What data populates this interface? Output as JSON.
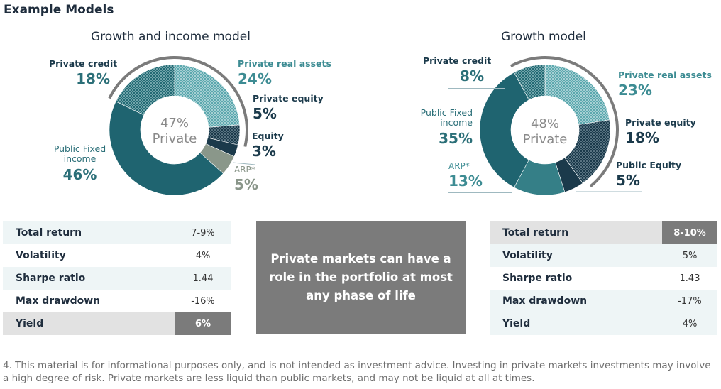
{
  "page_title": "Example Models",
  "chart_data": [
    {
      "type": "pie",
      "title": "Growth and income model",
      "center": {
        "percent": "47%",
        "label": "Private"
      },
      "slices": [
        {
          "name": "Private real assets",
          "value": 24,
          "label": "24%",
          "pattern": "dots-light",
          "color": "#4a9ea5"
        },
        {
          "name": "Private equity",
          "value": 5,
          "label": "5%",
          "pattern": "dots-dark",
          "color": "#1b3a4b"
        },
        {
          "name": "Equity",
          "value": 3,
          "label": "3%",
          "pattern": "solid",
          "color": "#1b3a4b"
        },
        {
          "name": "ARP*",
          "value": 5,
          "label": "5%",
          "pattern": "solid",
          "color": "#8a978a"
        },
        {
          "name": "Public Fixed income",
          "value": 46,
          "label": "46%",
          "pattern": "solid",
          "color": "#1f6470"
        },
        {
          "name": "Private credit",
          "value": 18,
          "label": "18%",
          "pattern": "dots-mid",
          "color": "#2f7d86"
        }
      ],
      "private_arc_percent": 47
    },
    {
      "type": "pie",
      "title": "Growth model",
      "center": {
        "percent": "48%",
        "label": "Private"
      },
      "slices": [
        {
          "name": "Private real assets",
          "value": 23,
          "label": "23%",
          "pattern": "dots-light",
          "color": "#4a9ea5"
        },
        {
          "name": "Private equity",
          "value": 18,
          "label": "18%",
          "pattern": "dots-dark",
          "color": "#1b3a4b"
        },
        {
          "name": "Public Equity",
          "value": 5,
          "label": "5%",
          "pattern": "solid",
          "color": "#1b3a4b"
        },
        {
          "name": "ARP*",
          "value": 13,
          "label": "13%",
          "pattern": "solid",
          "color": "#357f87"
        },
        {
          "name": "Public Fixed income",
          "value": 35,
          "label": "35%",
          "pattern": "solid",
          "color": "#1f6470"
        },
        {
          "name": "Private credit",
          "value": 8,
          "label": "8%",
          "pattern": "dots-mid",
          "color": "#2f7d86"
        }
      ],
      "private_arc_percent": 48
    }
  ],
  "left_labels": {
    "private_credit": {
      "name": "Private credit",
      "value": "18%"
    },
    "private_real_assets": {
      "name": "Private real assets",
      "value": "24%"
    },
    "private_equity": {
      "name": "Private equity",
      "value": "5%"
    },
    "equity": {
      "name": "Equity",
      "value": "3%"
    },
    "arp": {
      "name": "ARP*",
      "value": "5%"
    },
    "public_fixed_income": {
      "name": "Public Fixed income",
      "value": "46%"
    }
  },
  "right_labels": {
    "private_credit": {
      "name": "Private credit",
      "value": "8%"
    },
    "private_real_assets": {
      "name": "Private real assets",
      "value": "23%"
    },
    "private_equity": {
      "name": "Private equity",
      "value": "18%"
    },
    "public_equity": {
      "name": "Public Equity",
      "value": "5%"
    },
    "arp": {
      "name": "ARP*",
      "value": "13%"
    },
    "public_fixed_income": {
      "name": "Public Fixed income",
      "value": "35%"
    }
  },
  "left_stats": [
    {
      "label": "Total return",
      "value": "7-9%"
    },
    {
      "label": "Volatility",
      "value": "4%"
    },
    {
      "label": "Sharpe ratio",
      "value": "1.44"
    },
    {
      "label": "Max drawdown",
      "value": "-16%"
    },
    {
      "label": "Yield",
      "value": "6%"
    }
  ],
  "right_stats": [
    {
      "label": "Total return",
      "value": "8-10%"
    },
    {
      "label": "Volatility",
      "value": "5%"
    },
    {
      "label": "Sharpe ratio",
      "value": "1.43"
    },
    {
      "label": "Max drawdown",
      "value": "-17%"
    },
    {
      "label": "Yield",
      "value": "4%"
    }
  ],
  "message": "Private markets can have a role in the portfolio at most any phase of life",
  "footnote": "4. This material is for informational purposes only, and is not intended as investment advice. Investing in private markets investments may involve a high degree of risk. Private markets are less liquid than public markets, and may not be liquid at all at times."
}
